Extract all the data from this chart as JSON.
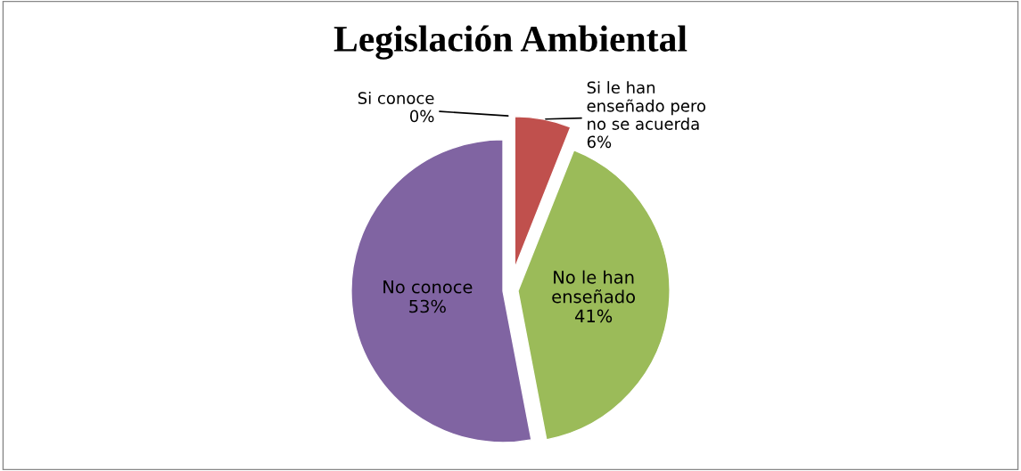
{
  "chart_data": {
    "type": "pie",
    "title": "Legislación Ambiental",
    "categories": [
      "Si conoce",
      "Si le han\nenseñado pero\nno se acuerda",
      "No le han\nenseñado",
      "No conoce"
    ],
    "values": [
      0,
      6,
      41,
      53
    ],
    "value_labels": [
      "0%",
      "6%",
      "41%",
      "53%"
    ],
    "colors": [
      "#4f81bd",
      "#c0504d",
      "#9bbb59",
      "#8064a2"
    ],
    "legend": false
  }
}
